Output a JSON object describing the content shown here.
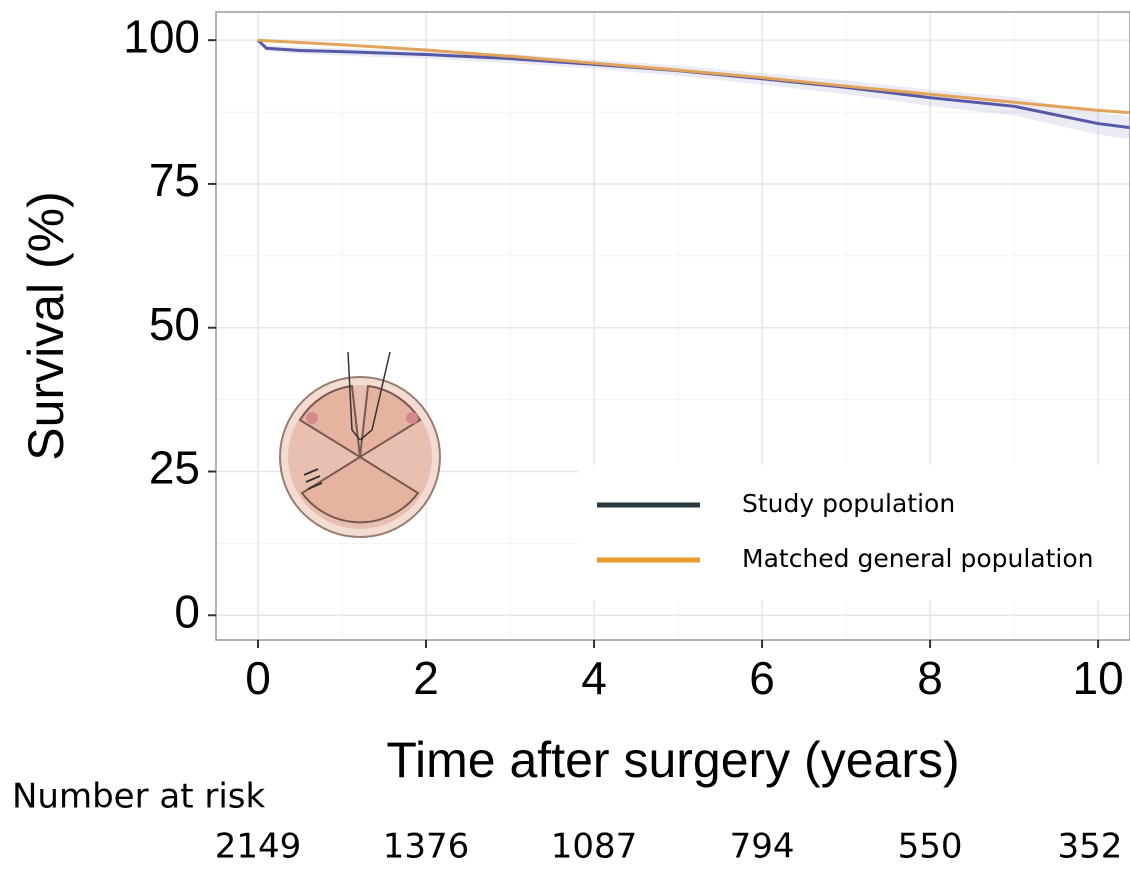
{
  "chart_data": {
    "type": "line",
    "ylabel": "Survival (%)",
    "xlabel": "Time after surgery (years)",
    "x": [
      0,
      0.1,
      0.5,
      1,
      2,
      3,
      4,
      5,
      6,
      7,
      8,
      9,
      10,
      10.38
    ],
    "series": [
      {
        "name": "Study population",
        "color": "#5558a6",
        "legend_color": "#26393f",
        "values": [
          100,
          98.6,
          98.2,
          98,
          97.5,
          96.8,
          95.8,
          94.7,
          93.3,
          91.8,
          90,
          88.5,
          85.5,
          84.8
        ],
        "lower": [
          100,
          98.1,
          97.6,
          97.3,
          96.8,
          96,
          95,
          93.8,
          92.3,
          90.6,
          88.6,
          86.9,
          83.6,
          82.8
        ],
        "upper": [
          100,
          99.1,
          98.8,
          98.6,
          98.2,
          97.6,
          96.6,
          95.6,
          94.3,
          93,
          91.4,
          90.1,
          87.4,
          86.8
        ]
      },
      {
        "name": "Matched general population",
        "color": "#e2a35a",
        "legend_color": "#e89a2e",
        "values": [
          100,
          99.9,
          99.6,
          99.2,
          98.3,
          97.2,
          96,
          94.8,
          93.5,
          92,
          90.6,
          89.2,
          87.8,
          87.4
        ]
      }
    ],
    "xlim": [
      -0.5,
      10.38
    ],
    "ylim": [
      -4.3,
      104.9
    ],
    "xticks": [
      0,
      2,
      4,
      6,
      8,
      10
    ],
    "yticks": [
      0,
      25,
      50,
      75,
      100
    ],
    "grid": true,
    "minor_grid": true,
    "legend": "lower right",
    "risk_table": {
      "title": "Number at risk",
      "x": [
        0,
        2,
        4,
        6,
        8,
        10
      ],
      "values": [
        2149,
        1376,
        1087,
        794,
        550,
        352
      ]
    }
  }
}
